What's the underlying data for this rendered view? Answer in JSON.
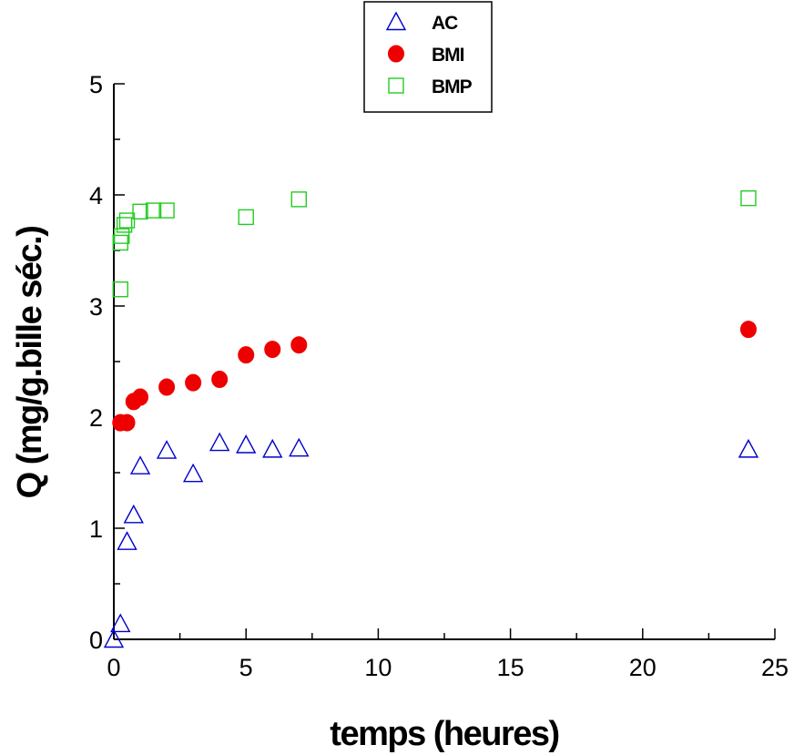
{
  "chart_data": {
    "type": "scatter",
    "title": "",
    "xlabel": "temps (heures)",
    "ylabel": "Q (mg/g.bille séc.)",
    "xlim": [
      0,
      25
    ],
    "ylim": [
      0,
      5
    ],
    "x_ticks": [
      "0",
      "5",
      "10",
      "15",
      "20",
      "25"
    ],
    "y_ticks": [
      "0",
      "1",
      "2",
      "3",
      "4",
      "5"
    ],
    "grid": false,
    "legend_position": "top-center",
    "series": [
      {
        "name": "AC",
        "marker": "triangle-open",
        "color": "#0000cc",
        "points": [
          [
            0,
            0
          ],
          [
            0.25,
            0.14
          ],
          [
            0.5,
            0.88
          ],
          [
            0.75,
            1.12
          ],
          [
            1,
            1.56
          ],
          [
            2,
            1.7
          ],
          [
            3,
            1.49
          ],
          [
            4,
            1.77
          ],
          [
            5,
            1.75
          ],
          [
            6,
            1.71
          ],
          [
            7,
            1.72
          ],
          [
            24,
            1.71
          ]
        ]
      },
      {
        "name": "BMI",
        "marker": "circle-filled",
        "color": "#ee0000",
        "points": [
          [
            0.25,
            1.95
          ],
          [
            0.5,
            1.95
          ],
          [
            0.75,
            2.14
          ],
          [
            1,
            2.18
          ],
          [
            2,
            2.27
          ],
          [
            3,
            2.31
          ],
          [
            4,
            2.34
          ],
          [
            5,
            2.56
          ],
          [
            6,
            2.61
          ],
          [
            7,
            2.65
          ],
          [
            24,
            2.79
          ]
        ]
      },
      {
        "name": "BMP",
        "marker": "square-open",
        "color": "#22cc22",
        "points": [
          [
            0.25,
            3.15
          ],
          [
            0.25,
            3.57
          ],
          [
            0.3,
            3.63
          ],
          [
            0.4,
            3.73
          ],
          [
            0.5,
            3.77
          ],
          [
            1,
            3.85
          ],
          [
            1.5,
            3.86
          ],
          [
            2,
            3.86
          ],
          [
            5,
            3.8
          ],
          [
            7,
            3.96
          ],
          [
            24,
            3.97
          ]
        ]
      }
    ]
  }
}
